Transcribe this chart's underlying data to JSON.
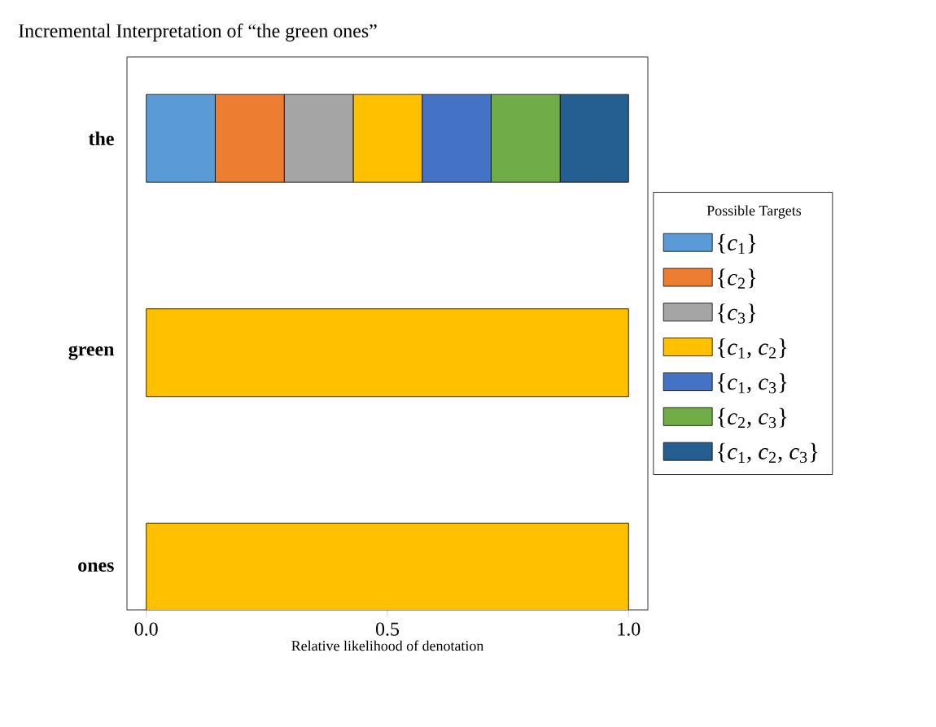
{
  "chart_data": {
    "type": "bar",
    "orientation": "horizontal",
    "stacked": true,
    "title": "Incremental Interpretation of “the green ones”",
    "xlabel": "Relative likelihood of denotation",
    "legend_title": "Possible Targets",
    "categories": [
      "the",
      "green",
      "ones"
    ],
    "xlim": [
      -0.04,
      1.04
    ],
    "xticks": [
      {
        "value": 0,
        "label": "0.0"
      },
      {
        "value": 0.5,
        "label": "0.5"
      },
      {
        "value": 1,
        "label": "1.0"
      }
    ],
    "legend": "right",
    "grid": false,
    "series": [
      {
        "name": "{*c*$_{1}$}",
        "color": "#5b9bd5",
        "values": [
          0.143,
          0,
          0
        ]
      },
      {
        "name": "{*c*$_{2}$}",
        "color": "#ed7d31",
        "values": [
          0.143,
          0,
          0
        ]
      },
      {
        "name": "{*c*$_{3}$}",
        "color": "#a5a5a5",
        "values": [
          0.143,
          0,
          0
        ]
      },
      {
        "name": "{*c*$_{1}$, *c*$_{2}$}",
        "color": "#ffc000",
        "values": [
          0.143,
          1,
          1
        ]
      },
      {
        "name": "{*c*$_{1}$, *c*$_{3}$}",
        "color": "#4472c4",
        "values": [
          0.143,
          0,
          0
        ]
      },
      {
        "name": "{*c*$_{2}$, *c*$_{3}$}",
        "color": "#70ad47",
        "values": [
          0.143,
          0,
          0
        ]
      },
      {
        "name": "{*c*$_{1}$, *c*$_{2}$, *c*$_{3}$}",
        "color": "#255e91",
        "values": [
          0.142,
          0,
          0
        ]
      }
    ]
  }
}
